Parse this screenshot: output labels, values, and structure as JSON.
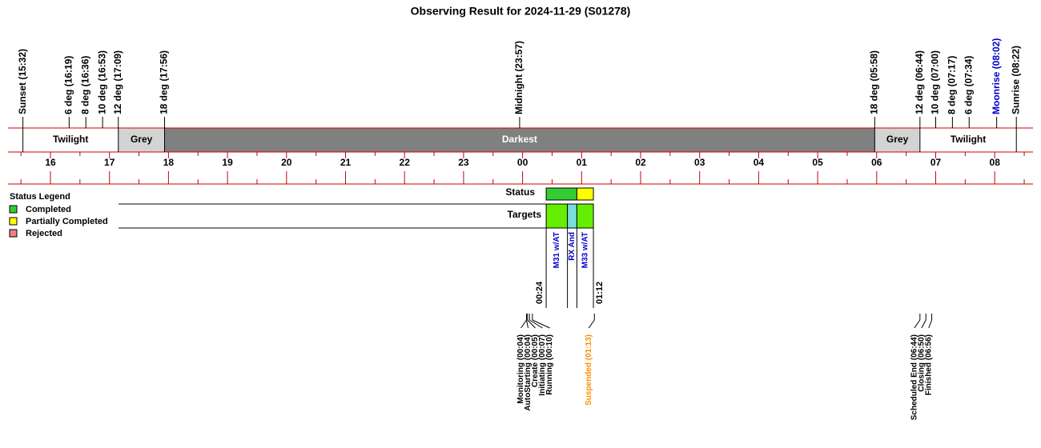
{
  "title": "Observing Result for 2024-11-29 (S01278)",
  "sky_events": [
    {
      "label": "Sunset (15:32)",
      "color": "#000000"
    },
    {
      "label": "6 deg (16:19)",
      "color": "#000000"
    },
    {
      "label": "8 deg (16:36)",
      "color": "#000000"
    },
    {
      "label": "10 deg (16:53)",
      "color": "#000000"
    },
    {
      "label": "12 deg (17:09)",
      "color": "#000000"
    },
    {
      "label": "18 deg (17:56)",
      "color": "#000000"
    },
    {
      "label": "Midnight (23:57)",
      "color": "#000000"
    },
    {
      "label": "18 deg (05:58)",
      "color": "#000000"
    },
    {
      "label": "12 deg (06:44)",
      "color": "#000000"
    },
    {
      "label": "10 deg (07:00)",
      "color": "#000000"
    },
    {
      "label": "8 deg (07:17)",
      "color": "#000000"
    },
    {
      "label": "6 deg (07:34)",
      "color": "#000000"
    },
    {
      "label": "Moonrise (08:02)",
      "color": "#0000cc"
    },
    {
      "label": "Sunrise (08:22)",
      "color": "#000000"
    }
  ],
  "bands": [
    {
      "label": "Twilight",
      "color": "#ffffff",
      "text_color": "#000000"
    },
    {
      "label": "Grey",
      "color": "#d3d3d3",
      "text_color": "#000000"
    },
    {
      "label": "Darkest",
      "color": "#808080",
      "text_color": "#ffffff"
    },
    {
      "label": "Grey",
      "color": "#d3d3d3",
      "text_color": "#000000"
    },
    {
      "label": "Twilight",
      "color": "#ffffff",
      "text_color": "#000000"
    }
  ],
  "hours": [
    "16",
    "17",
    "18",
    "19",
    "20",
    "21",
    "22",
    "23",
    "00",
    "01",
    "02",
    "03",
    "04",
    "05",
    "06",
    "07",
    "08"
  ],
  "legend": {
    "title": "Status Legend",
    "items": [
      {
        "label": "Completed",
        "color": "#33cc33"
      },
      {
        "label": "Partially Completed",
        "color": "#ffff00"
      },
      {
        "label": "Rejected",
        "color": "#f08080"
      }
    ]
  },
  "rows": [
    "Status",
    "Targets"
  ],
  "targets": [
    {
      "label": "M31  w/AT",
      "color": "#66ee00"
    },
    {
      "label": "RX And",
      "color": "#77dddd"
    },
    {
      "label": "M33  w/AT",
      "color": "#66ee00"
    }
  ],
  "run_times": [
    "00:24",
    "01:12"
  ],
  "status_events": [
    {
      "label": "Monitoring (00:04)",
      "color": "#000000"
    },
    {
      "label": "AutoStarting (00:04)",
      "color": "#000000"
    },
    {
      "label": "Create (00:05)",
      "color": "#000000"
    },
    {
      "label": "Initiating (00:07)",
      "color": "#000000"
    },
    {
      "label": "Running (00:10)",
      "color": "#000000"
    },
    {
      "label": "Suspended (01:13)",
      "color": "#ff8c00"
    },
    {
      "label": "Scheduled End (06:44)",
      "color": "#000000"
    },
    {
      "label": "Closing (06:50)",
      "color": "#000000"
    },
    {
      "label": "Finished (06:56)",
      "color": "#000000"
    }
  ]
}
